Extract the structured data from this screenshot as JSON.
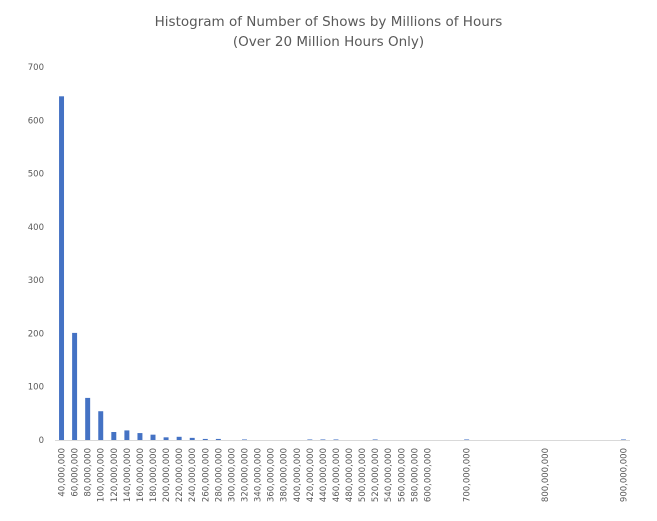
{
  "chart_data": {
    "type": "bar",
    "title": "Histogram of Number of Shows by Millions of Hours",
    "subtitle": "(Over 20 Million Hours Only)",
    "xlabel": "",
    "ylabel": "",
    "ylim": [
      0,
      700
    ],
    "yticks": [
      0,
      100,
      200,
      300,
      400,
      500,
      600,
      700
    ],
    "grid": false,
    "legend": "none",
    "bar_color": "#4472c4",
    "categories": [
      "40,000,000",
      "60,000,000",
      "80,000,000",
      "100,000,000",
      "120,000,000",
      "140,000,000",
      "160,000,000",
      "180,000,000",
      "200,000,000",
      "220,000,000",
      "240,000,000",
      "260,000,000",
      "280,000,000",
      "300,000,000",
      "320,000,000",
      "340,000,000",
      "360,000,000",
      "380,000,000",
      "400,000,000",
      "420,000,000",
      "440,000,000",
      "460,000,000",
      "480,000,000",
      "500,000,000",
      "520,000,000",
      "540,000,000",
      "560,000,000",
      "580,000,000",
      "600,000,000",
      "",
      "",
      "700,000,000",
      "",
      "",
      "",
      "",
      "",
      "800,000,000",
      "",
      "",
      "",
      "",
      "",
      "900,000,000"
    ],
    "values": [
      645,
      201,
      79,
      54,
      15,
      18,
      13,
      10,
      5,
      6,
      4,
      2,
      2,
      0,
      1,
      0,
      0,
      0,
      0,
      1,
      1,
      1,
      0,
      0,
      1,
      0,
      0,
      0,
      0,
      0,
      0,
      1,
      0,
      0,
      0,
      0,
      0,
      0,
      0,
      0,
      0,
      0,
      0,
      1
    ]
  }
}
